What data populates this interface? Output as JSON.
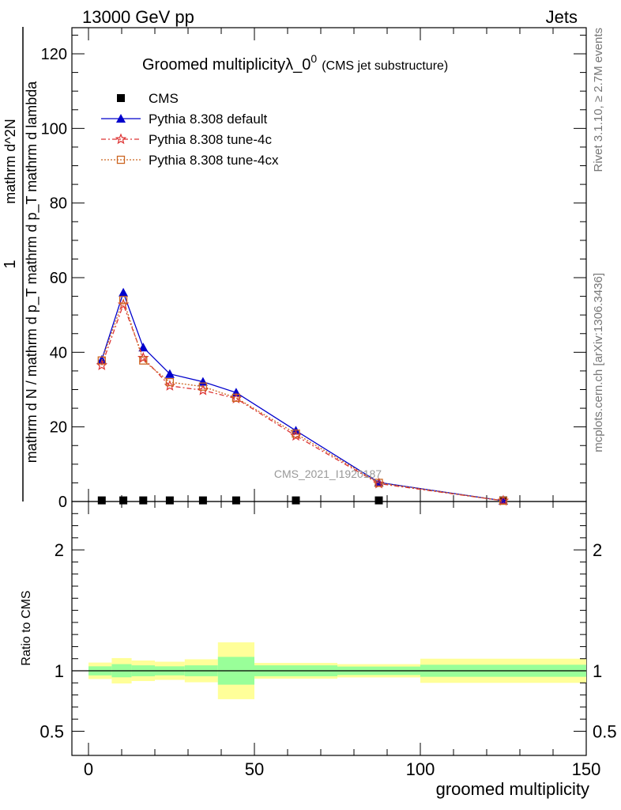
{
  "header": {
    "energy_label": "13000 GeV pp",
    "process_label": "Jets"
  },
  "side_labels": {
    "rivet": "Rivet 3.1.10, ≥ 2.7M events",
    "mcplots": "mcplots.cern.ch [arXiv:1306.3436]"
  },
  "watermark": "CMS_2021_I1920187",
  "chart_data": [
    {
      "type": "line",
      "title_main": "Groomed multiplicityλ_0",
      "title_sup": "0",
      "title_sub": "(CMS jet substructure)",
      "ylabel_numerator": "1",
      "ylabel_denominator": "mathrm d N / mathrm d p_T mathrm d p_T mathrm d lambda",
      "ylabel_top": "mathrm d^2N",
      "xlim": [
        -5,
        150
      ],
      "ylim": [
        0,
        127
      ],
      "yticks": [
        0,
        20,
        40,
        60,
        80,
        100,
        120
      ],
      "legend_position": "top-left",
      "series": [
        {
          "name": "CMS",
          "marker": "square",
          "color": "#000000",
          "x": [
            4,
            10.5,
            16.5,
            24.5,
            34.5,
            44.5,
            62.5,
            87.5,
            125
          ],
          "y": [
            0.3,
            0.3,
            0.3,
            0.3,
            0.3,
            0.3,
            0.3,
            0.3,
            0.3
          ]
        },
        {
          "name": "Pythia 8.308 default",
          "marker": "triangle",
          "color": "#0000cc",
          "line": "solid",
          "x": [
            4,
            10.5,
            16.5,
            24.5,
            34.5,
            44.5,
            62.5,
            87.5,
            125
          ],
          "y": [
            38.0,
            56.0,
            41.3,
            34.2,
            32.1,
            29.2,
            19.0,
            5.1,
            0.2
          ]
        },
        {
          "name": "Pythia 8.308 tune-4c",
          "marker": "star",
          "color": "#dd3333",
          "line": "dashdot",
          "x": [
            4,
            10.5,
            16.5,
            24.5,
            34.5,
            44.5,
            62.5,
            87.5,
            125
          ],
          "y": [
            36.5,
            52.8,
            38.5,
            31.0,
            29.8,
            27.6,
            17.6,
            4.8,
            0.2
          ]
        },
        {
          "name": "Pythia 8.308 tune-4cx",
          "marker": "open-square",
          "color": "#cc6622",
          "line": "dotted",
          "x": [
            4,
            10.5,
            16.5,
            24.5,
            34.5,
            44.5,
            62.5,
            87.5,
            125
          ],
          "y": [
            37.8,
            54.0,
            37.8,
            32.0,
            30.8,
            27.8,
            18.2,
            5.0,
            0.2
          ]
        }
      ]
    },
    {
      "type": "area",
      "ylabel": "Ratio to CMS",
      "xlabel": "groomed multiplicity",
      "xlim": [
        -5,
        150
      ],
      "ylim": [
        0.3,
        2.4
      ],
      "yticks": [
        0.5,
        1,
        2
      ],
      "ytick_labels": [
        "0.5",
        "1",
        "2"
      ],
      "xticks": [
        0,
        50,
        100,
        150
      ],
      "xtick_labels": [
        "0",
        "50",
        "100",
        "150"
      ],
      "bins": [
        {
          "lo": 0,
          "hi": 7,
          "stat_lo": 0.962,
          "stat_hi": 1.037,
          "tot_lo": 0.932,
          "tot_hi": 1.068
        },
        {
          "lo": 7,
          "hi": 13,
          "stat_lo": 0.946,
          "stat_hi": 1.055,
          "tot_lo": 0.895,
          "tot_hi": 1.105
        },
        {
          "lo": 13,
          "hi": 20,
          "stat_lo": 0.955,
          "stat_hi": 1.045,
          "tot_lo": 0.915,
          "tot_hi": 1.085
        },
        {
          "lo": 20,
          "hi": 29,
          "stat_lo": 0.962,
          "stat_hi": 1.037,
          "tot_lo": 0.925,
          "tot_hi": 1.075
        },
        {
          "lo": 29,
          "hi": 39,
          "stat_lo": 0.955,
          "stat_hi": 1.045,
          "tot_lo": 0.905,
          "tot_hi": 1.095
        },
        {
          "lo": 39,
          "hi": 50,
          "stat_lo": 0.885,
          "stat_hi": 1.115,
          "tot_lo": 0.765,
          "tot_hi": 1.235
        },
        {
          "lo": 50,
          "hi": 75,
          "stat_lo": 0.955,
          "stat_hi": 1.045,
          "tot_lo": 0.935,
          "tot_hi": 1.065
        },
        {
          "lo": 75,
          "hi": 100,
          "stat_lo": 0.965,
          "stat_hi": 1.035,
          "tot_lo": 0.945,
          "tot_hi": 1.055
        },
        {
          "lo": 100,
          "hi": 150,
          "stat_lo": 0.95,
          "stat_hi": 1.05,
          "tot_lo": 0.9,
          "tot_hi": 1.1
        }
      ],
      "stat_color": "#99ff99",
      "tot_color": "#ffff99"
    }
  ]
}
